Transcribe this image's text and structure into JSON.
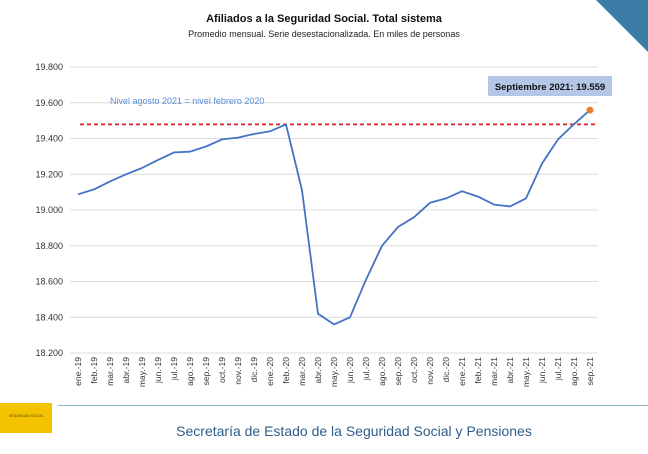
{
  "chart_data": {
    "type": "line",
    "title": "Afiliados a la Seguridad Social. Total sistema",
    "subtitle": "Promedio mensual. Serie desestacionalizada. En miles de personas",
    "categories": [
      "ene.-19",
      "feb.-19",
      "mar.-19",
      "abr.-19",
      "may.-19",
      "jun.-19",
      "jul.-19",
      "ago.-19",
      "sep.-19",
      "oct.-19",
      "nov.-19",
      "dic.-19",
      "ene.-20",
      "feb.-20",
      "mar.-20",
      "abr.-20",
      "may.-20",
      "jun.-20",
      "jul.-20",
      "ago.-20",
      "sep.-20",
      "oct.-20",
      "nov.-20",
      "dic.-20",
      "ene.-21",
      "feb.-21",
      "mar.-21",
      "abr.-21",
      "may.-21",
      "jun.-21",
      "jul.-21",
      "ago.-21",
      "sep.-21"
    ],
    "series": [
      {
        "values": [
          19088,
          19115,
          19160,
          19200,
          19235,
          19280,
          19322,
          19326,
          19355,
          19395,
          19405,
          19425,
          19440,
          19479,
          19110,
          18420,
          18360,
          18400,
          18610,
          18800,
          18905,
          18960,
          19040,
          19065,
          19105,
          19075,
          19030,
          19020,
          19065,
          19260,
          19395,
          19480,
          19559
        ]
      }
    ],
    "reference_line": {
      "value": 19479,
      "label": "Nivel agosto 2021 = nivel febrero 2020"
    },
    "highlight": {
      "index": 32,
      "label": "Septiembre 2021: 19.559"
    },
    "ylim": [
      18200,
      19800
    ],
    "yticks": [
      18200,
      18400,
      18600,
      18800,
      19000,
      19200,
      19400,
      19600,
      19800
    ],
    "ytick_labels": [
      "18.200",
      "18.400",
      "18.600",
      "18.800",
      "19.000",
      "19.200",
      "19.400",
      "19.600",
      "19.800"
    ],
    "grid": true,
    "colors": {
      "line": "#4472c4",
      "reference": "#e02020",
      "highlight_marker": "#ed7d31",
      "callout_bg": "#b4c7e7",
      "label_text": "#5b8fd6"
    }
  },
  "footer": {
    "title": "Secretaría de Estado de la Seguridad Social y Pensiones",
    "logo_text": "SEGURIDAD SOCIAL"
  }
}
